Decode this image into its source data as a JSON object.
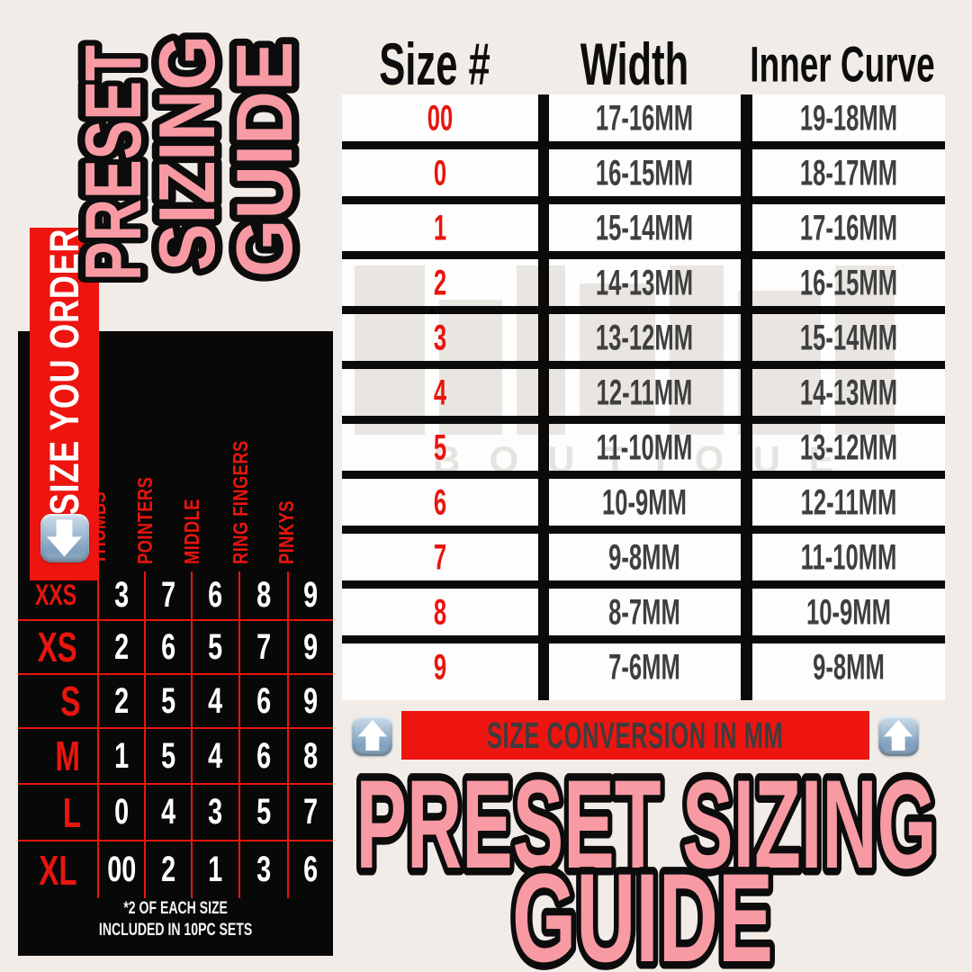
{
  "titles": {
    "vertical_words": [
      "PRESET",
      "SIZING",
      "GUIDE"
    ],
    "bottom_line1": "PRESET SIZING",
    "bottom_line2": "GUIDE"
  },
  "order_banner": {
    "label": "SIZE YOU ORDER",
    "icon": "down-arrow-emoji"
  },
  "left_table": {
    "column_headers": [
      "THUMBS",
      "POINTERS",
      "MIDDLE",
      "RING FINGERS",
      "PINKYS"
    ],
    "rows": [
      {
        "label": "XXS",
        "values": [
          "3",
          "7",
          "6",
          "8",
          "9"
        ]
      },
      {
        "label": "XS",
        "values": [
          "2",
          "6",
          "5",
          "7",
          "9"
        ]
      },
      {
        "label": "S",
        "values": [
          "2",
          "5",
          "4",
          "6",
          "9"
        ]
      },
      {
        "label": "M",
        "values": [
          "1",
          "5",
          "4",
          "6",
          "8"
        ]
      },
      {
        "label": "L",
        "values": [
          "0",
          "4",
          "3",
          "5",
          "7"
        ]
      },
      {
        "label": "XL",
        "values": [
          "00",
          "2",
          "1",
          "3",
          "6"
        ]
      }
    ],
    "footnote_line1": "*2 OF EACH SIZE",
    "footnote_line2": "INCLUDED IN 10PC SETS"
  },
  "size_table": {
    "headers": [
      "Size #",
      "Width",
      "Inner Curve"
    ],
    "rows": [
      {
        "size": "00",
        "width": "17-16MM",
        "inner_curve": "19-18MM"
      },
      {
        "size": "0",
        "width": "16-15MM",
        "inner_curve": "18-17MM"
      },
      {
        "size": "1",
        "width": "15-14MM",
        "inner_curve": "17-16MM"
      },
      {
        "size": "2",
        "width": "14-13MM",
        "inner_curve": "16-15MM"
      },
      {
        "size": "3",
        "width": "13-12MM",
        "inner_curve": "15-14MM"
      },
      {
        "size": "4",
        "width": "12-11MM",
        "inner_curve": "14-13MM"
      },
      {
        "size": "5",
        "width": "11-10MM",
        "inner_curve": "13-12MM"
      },
      {
        "size": "6",
        "width": "10-9MM",
        "inner_curve": "12-11MM"
      },
      {
        "size": "7",
        "width": "9-8MM",
        "inner_curve": "11-10MM"
      },
      {
        "size": "8",
        "width": "8-7MM",
        "inner_curve": "10-9MM"
      },
      {
        "size": "9",
        "width": "7-6MM",
        "inner_curve": "9-8MM"
      }
    ]
  },
  "conversion_banner": {
    "label": "SIZE CONVERSION IN MM",
    "left_icon": "up-arrow-emoji",
    "right_icon": "up-arrow-emoji"
  },
  "watermark": {
    "text": "BOUTIQUE"
  },
  "colors": {
    "background_cream": "#f1ece7",
    "banner_red": "#ee1410",
    "accent_red": "#e9150d",
    "title_pink": "#f89aa3",
    "outline_black": "#0c0c0c",
    "table_text_gray": "#3f3f3f",
    "panel_black": "#080808",
    "cell_white": "#fdfdfd",
    "emoji_blue": "#7e9fbe"
  }
}
